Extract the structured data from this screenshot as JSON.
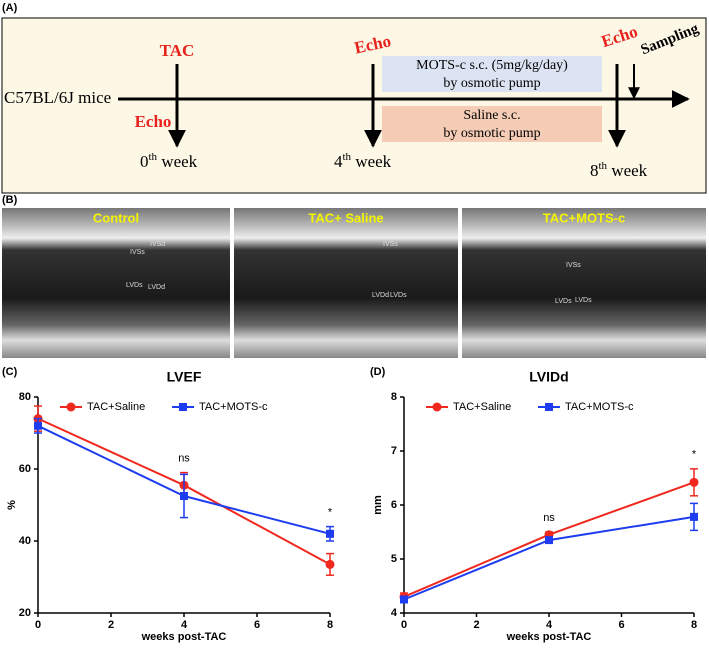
{
  "panel_labels": [
    "(A)",
    "(B)",
    "(C)",
    "(D)"
  ],
  "timeline": {
    "strain": "C57BL/6J mice",
    "surgery": "TAC",
    "echo": [
      "Echo",
      "Echo",
      "Echo"
    ],
    "sampling": "Sampling",
    "weeks": [
      {
        "num": "0",
        "sup": "th",
        "unit": " week"
      },
      {
        "num": "4",
        "sup": "th",
        "unit": " week"
      },
      {
        "num": "8",
        "sup": "th",
        "unit": " week"
      }
    ],
    "treatment": [
      "MOTS-c s.c. (5mg/kg/day)",
      "by osmotic pump"
    ],
    "control": [
      "Saline s.c.",
      "by osmotic pump"
    ]
  },
  "echo_images": [
    {
      "label": "Control",
      "annotations": [
        "IVSd",
        "IVSs",
        "LVDs",
        "LVDd"
      ]
    },
    {
      "label": "TAC+ Saline",
      "annotations": [
        "IVSs",
        "LVDd",
        "LVDs"
      ]
    },
    {
      "label": "TAC+MOTS-c",
      "annotations": [
        "IVSs",
        "LVDs",
        "LVDs"
      ]
    }
  ],
  "chart_data": [
    {
      "type": "line",
      "title": "LVEF",
      "x_label": "weeks post-TAC",
      "y_label": "%",
      "x": [
        0,
        4,
        8
      ],
      "xlim": [
        0,
        8
      ],
      "xticks": [
        0,
        2,
        4,
        6,
        8
      ],
      "ylim": [
        20,
        80
      ],
      "yticks": [
        20,
        40,
        60,
        80
      ],
      "series": [
        {
          "name": "TAC+Saline",
          "color": "#f0281e",
          "marker": "circle",
          "values": [
            74,
            55.5,
            33.5
          ],
          "errors": [
            3.5,
            3.5,
            3
          ]
        },
        {
          "name": "TAC+MOTS-c",
          "color": "#1e3cf0",
          "marker": "square",
          "values": [
            72,
            52.5,
            42
          ],
          "errors": [
            2,
            6,
            2
          ]
        }
      ],
      "annotations": [
        {
          "text": "ns",
          "x": 4
        },
        {
          "text": "*",
          "x": 8
        }
      ]
    },
    {
      "type": "line",
      "title": "LVIDd",
      "x_label": "weeks post-TAC",
      "y_label": "mm",
      "x": [
        0,
        4,
        8
      ],
      "xlim": [
        0,
        8
      ],
      "xticks": [
        0,
        2,
        4,
        6,
        8
      ],
      "ylim": [
        4,
        8
      ],
      "yticks": [
        4,
        5,
        6,
        7,
        8
      ],
      "series": [
        {
          "name": "TAC+Saline",
          "color": "#f0281e",
          "marker": "circle",
          "values": [
            4.3,
            5.45,
            6.42
          ],
          "errors": [
            0.07,
            0.05,
            0.25
          ]
        },
        {
          "name": "TAC+MOTS-c",
          "color": "#1e3cf0",
          "marker": "square",
          "values": [
            4.25,
            5.35,
            5.78
          ],
          "errors": [
            0.06,
            0.05,
            0.25
          ]
        }
      ],
      "annotations": [
        {
          "text": "ns",
          "x": 4
        },
        {
          "text": "*",
          "x": 8
        }
      ]
    }
  ]
}
